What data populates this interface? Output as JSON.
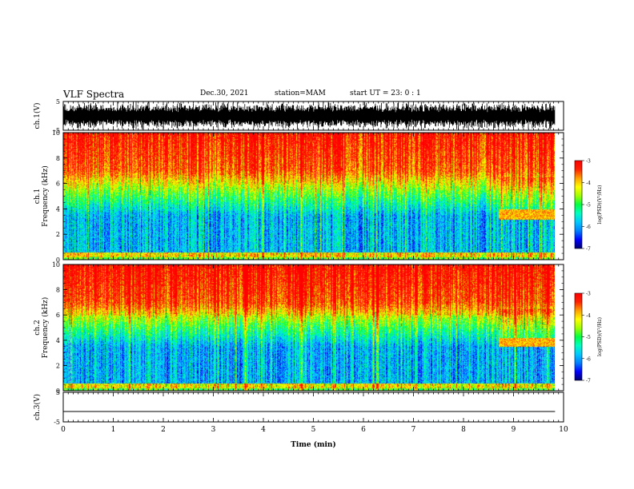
{
  "header": {
    "title": "VLF Spectra",
    "date": "Dec.30, 2021",
    "station": "station=MAM",
    "start": "start  UT =   23: 0  : 1"
  },
  "chart_data": [
    {
      "type": "line",
      "name": "ch1-waveform",
      "ylabel": "ch.1(V)",
      "ylim": [
        -5,
        5
      ],
      "yticks": [
        "5",
        "-5"
      ],
      "x_data_end": 9.83
    },
    {
      "type": "heatmap",
      "name": "ch1-spectrogram",
      "ylabel": "ch.1\nFrequency (kHz)",
      "ylim": [
        0,
        10
      ],
      "yticks": [
        "0",
        "2",
        "4",
        "6",
        "8",
        "10"
      ],
      "colorbar": {
        "label": "log(PSD)(V²/Hz)",
        "range": [
          -7,
          -3
        ],
        "ticks": [
          "-3",
          "-4",
          "-5",
          "-6",
          "-7"
        ]
      },
      "features": {
        "band_start_min": 8.7,
        "band_freq_khz": [
          3.2,
          4.0
        ]
      }
    },
    {
      "type": "heatmap",
      "name": "ch2-spectrogram",
      "ylabel": "ch.2\nFrequency (kHz)",
      "ylim": [
        0,
        10
      ],
      "yticks": [
        "0",
        "2",
        "4",
        "6",
        "8",
        "10"
      ],
      "colorbar": {
        "label": "log(PSD)(V²/Hz)",
        "range": [
          -7,
          -3
        ],
        "ticks": [
          "-3",
          "-4",
          "-5",
          "-6",
          "-7"
        ]
      },
      "features": {
        "band_start_min": 8.7,
        "band_freq_khz": [
          3.5,
          4.2
        ]
      }
    },
    {
      "type": "line",
      "name": "ch3-waveform",
      "ylabel": "ch.3(V)",
      "ylim": [
        -5,
        5
      ],
      "yticks": [
        "5",
        "-5"
      ],
      "constant_value": -1.5
    }
  ],
  "xaxis": {
    "label": "Time  (min)",
    "range": [
      0,
      10
    ],
    "ticks": [
      "0",
      "1",
      "2",
      "3",
      "4",
      "5",
      "6",
      "7",
      "8",
      "9",
      "10"
    ]
  },
  "colors": {
    "cmap": [
      "#000070",
      "#0000ff",
      "#0080ff",
      "#00c8ff",
      "#00ffc0",
      "#00ff40",
      "#a0ff00",
      "#ffff00",
      "#ffa000",
      "#ff2000",
      "#ff0000"
    ],
    "line": "#000000"
  }
}
